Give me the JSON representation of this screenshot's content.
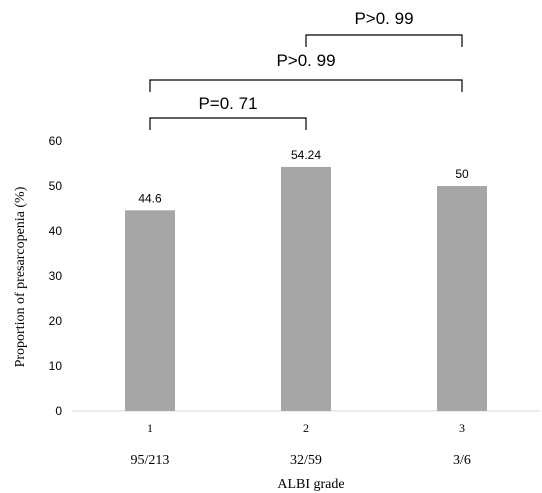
{
  "chart_data": {
    "type": "bar",
    "categories": [
      "1",
      "2",
      "3"
    ],
    "category_counts": [
      "95/213",
      "32/59",
      "3/6"
    ],
    "values": [
      44.6,
      54.24,
      50
    ],
    "data_labels": [
      "44.6",
      "54.24",
      "50"
    ],
    "xlabel": "ALBI grade",
    "ylabel": "Proportion of presarcopenia (%)",
    "ylim": [
      0,
      60
    ],
    "yticks": [
      0,
      10,
      20,
      30,
      40,
      50,
      60
    ],
    "grid": false,
    "legend": "none",
    "bar_color": "#a6a6a6",
    "comparisons": [
      {
        "from": "1",
        "to": "2",
        "label": "P=0. 71"
      },
      {
        "from": "1",
        "to": "3",
        "label": "P>0. 99"
      },
      {
        "from": "2",
        "to": "3",
        "label": "P>0. 99"
      }
    ]
  }
}
